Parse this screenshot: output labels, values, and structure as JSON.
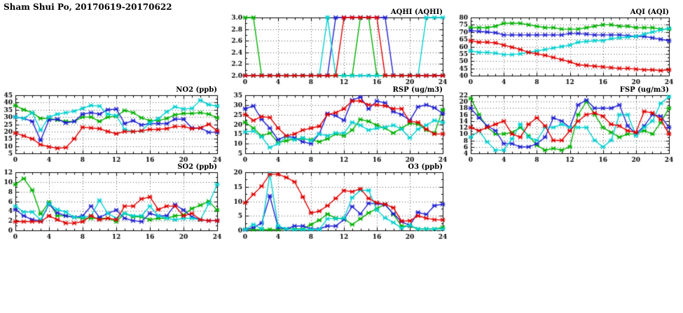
{
  "page_title": "Sham Shui Po, 20170619-20170622",
  "chart_data": [
    {
      "key": "aqhi",
      "type": "line",
      "title": "AQHI (AQHI)",
      "xlabel": "",
      "ylabel": "",
      "xlim": [
        0,
        24
      ],
      "xtick_step": 4,
      "ylim": [
        2.0,
        3.0
      ],
      "ytick_step": 0.2,
      "y_decimals": 1,
      "grid": true,
      "legend": "none",
      "x": [
        0,
        1,
        2,
        3,
        4,
        5,
        6,
        7,
        8,
        9,
        10,
        11,
        12,
        13,
        14,
        15,
        16,
        17,
        18,
        19,
        20,
        21,
        22,
        23,
        24
      ],
      "series": [
        {
          "name": "green",
          "color": "#00b000",
          "values": [
            3,
            3,
            2,
            2,
            2,
            2,
            2,
            2,
            2,
            2,
            2,
            2,
            2,
            2,
            3,
            3,
            2,
            2,
            2,
            2,
            2,
            2,
            2,
            2,
            2
          ]
        },
        {
          "name": "blue",
          "color": "#2020d0",
          "values": [
            2,
            2,
            2,
            2,
            2,
            2,
            2,
            2,
            2,
            2,
            2,
            3,
            3,
            3,
            3,
            3,
            3,
            3,
            2,
            2,
            2,
            2,
            2,
            2,
            2
          ]
        },
        {
          "name": "cyan",
          "color": "#00d0d0",
          "values": [
            2,
            2,
            2,
            2,
            2,
            2,
            2,
            2,
            2,
            2,
            3,
            2,
            2,
            2,
            2,
            2,
            2,
            2,
            2,
            2,
            2,
            2,
            3,
            3,
            3
          ]
        },
        {
          "name": "red",
          "color": "#e00000",
          "values": [
            2,
            2,
            2,
            2,
            2,
            2,
            2,
            2,
            2,
            2,
            2,
            2,
            3,
            3,
            3,
            3,
            3,
            2,
            2,
            2,
            2,
            2,
            2,
            2,
            2
          ]
        }
      ]
    },
    {
      "key": "aqi",
      "type": "line",
      "title": "AQI (AQI)",
      "xlabel": "",
      "ylabel": "",
      "xlim": [
        0,
        24
      ],
      "xtick_step": 4,
      "ylim": [
        40,
        80
      ],
      "ytick_step": 5,
      "y_decimals": 0,
      "grid": true,
      "legend": "none",
      "x": [
        0,
        1,
        2,
        3,
        4,
        5,
        6,
        7,
        8,
        9,
        10,
        11,
        12,
        13,
        14,
        15,
        16,
        17,
        18,
        19,
        20,
        21,
        22,
        23,
        24
      ],
      "series": [
        {
          "name": "green",
          "color": "#00b000",
          "values": [
            73,
            73,
            73,
            74,
            76,
            76,
            76,
            75,
            74,
            73,
            73,
            72,
            72,
            72,
            73,
            74,
            75,
            75,
            74,
            74,
            73,
            73,
            73,
            72,
            72
          ]
        },
        {
          "name": "blue",
          "color": "#2020d0",
          "values": [
            71,
            70.5,
            70,
            69.5,
            68,
            68,
            68,
            68,
            68,
            68,
            68,
            68,
            69,
            69,
            68.5,
            68,
            68,
            68,
            68,
            67.5,
            67,
            67,
            66,
            65,
            64
          ]
        },
        {
          "name": "cyan",
          "color": "#00d0d0",
          "values": [
            57,
            56,
            56,
            55.5,
            54.5,
            54.5,
            55,
            56,
            57,
            58,
            59,
            60,
            61,
            63,
            63.5,
            64,
            64,
            65.5,
            66,
            66.5,
            67,
            68.5,
            70,
            71.5,
            72.5
          ]
        },
        {
          "name": "red",
          "color": "#e00000",
          "values": [
            64,
            63,
            63,
            62.5,
            61,
            59.5,
            58,
            56,
            55,
            54,
            52.5,
            51,
            49.5,
            47.5,
            47,
            46.5,
            46,
            45.5,
            45,
            45,
            44.5,
            44,
            44,
            43.5,
            44
          ]
        }
      ]
    },
    {
      "key": "no2",
      "type": "line",
      "title": "NO2 (ppb)",
      "xlabel": "",
      "ylabel": "",
      "xlim": [
        0,
        24
      ],
      "xtick_step": 4,
      "ylim": [
        5,
        45
      ],
      "ytick_step": 5,
      "y_decimals": 0,
      "grid": true,
      "legend": "none",
      "x": [
        0,
        1,
        2,
        3,
        4,
        5,
        6,
        7,
        8,
        9,
        10,
        11,
        12,
        13,
        14,
        15,
        16,
        17,
        18,
        19,
        20,
        21,
        22,
        23,
        24
      ],
      "series": [
        {
          "name": "green",
          "color": "#00b000",
          "values": [
            38,
            35,
            33,
            29,
            29,
            28,
            27,
            27,
            30,
            30,
            27,
            30,
            30.5,
            34.5,
            33,
            29.5,
            27.5,
            27.5,
            29,
            31.5,
            32.5,
            32.5,
            33,
            32,
            29.5
          ]
        },
        {
          "name": "blue",
          "color": "#2020d0",
          "values": [
            30,
            29,
            27,
            14,
            28,
            28.5,
            26,
            27,
            32,
            33,
            32,
            35,
            35.5,
            25.5,
            27.5,
            24.5,
            25.5,
            25.5,
            25.5,
            28.5,
            28.5,
            22.5,
            22.5,
            19.5,
            19.5
          ]
        },
        {
          "name": "cyan",
          "color": "#00d0d0",
          "values": [
            30,
            29,
            33,
            21,
            30,
            32,
            33,
            34,
            36,
            38,
            37.5,
            32,
            31,
            21.5,
            20,
            20.5,
            26,
            29,
            33.5,
            37,
            35.5,
            36,
            41.5,
            38.5,
            37.5
          ]
        },
        {
          "name": "red",
          "color": "#e00000",
          "values": [
            19,
            17,
            15,
            11,
            9.5,
            8.5,
            9,
            15,
            23,
            22.5,
            22,
            20,
            18.5,
            20,
            20,
            20.5,
            21.5,
            21.5,
            22,
            23.5,
            23.5,
            22,
            22.5,
            25,
            20.5
          ]
        }
      ]
    },
    {
      "key": "rsp",
      "type": "line",
      "title": "RSP (ug/m3)",
      "xlabel": "",
      "ylabel": "",
      "xlim": [
        0,
        24
      ],
      "xtick_step": 4,
      "ylim": [
        5,
        35
      ],
      "ytick_step": 5,
      "y_decimals": 0,
      "grid": true,
      "legend": "none",
      "x": [
        0,
        1,
        2,
        3,
        4,
        5,
        6,
        7,
        8,
        9,
        10,
        11,
        12,
        13,
        14,
        15,
        16,
        17,
        18,
        19,
        20,
        21,
        22,
        23,
        24
      ],
      "series": [
        {
          "name": "green",
          "color": "#00b000",
          "values": [
            21,
            18,
            14,
            15.5,
            10.5,
            11.5,
            12.5,
            12.5,
            12,
            11,
            12.5,
            15,
            14,
            17,
            22.5,
            21.5,
            19.5,
            18,
            15.5,
            18,
            20.5,
            20,
            17,
            15.5,
            27.5
          ]
        },
        {
          "name": "blue",
          "color": "#2020d0",
          "values": [
            28,
            29.5,
            22.5,
            18,
            12,
            14,
            13,
            11,
            10,
            15,
            25.5,
            24.5,
            22,
            32.5,
            34,
            28,
            32,
            31,
            26.5,
            25,
            22,
            29,
            30,
            28.5,
            25.5
          ]
        },
        {
          "name": "cyan",
          "color": "#00d0d0",
          "values": [
            16,
            16.5,
            13.5,
            8,
            10,
            13.5,
            12,
            13,
            11.5,
            15,
            14,
            15.5,
            15.5,
            21,
            19.5,
            17,
            18,
            18.5,
            19.5,
            17.5,
            13,
            17.5,
            19.5,
            22,
            21
          ]
        },
        {
          "name": "red",
          "color": "#e00000",
          "values": [
            25,
            22,
            24,
            23.5,
            18,
            14,
            15,
            17,
            18,
            19,
            25,
            26,
            28,
            32,
            32,
            30,
            30,
            29.5,
            28,
            28,
            21.5,
            21,
            17.5,
            15,
            15
          ]
        }
      ]
    },
    {
      "key": "fsp",
      "type": "line",
      "title": "FSP (ug/m3)",
      "xlabel": "",
      "ylabel": "",
      "xlim": [
        0,
        24
      ],
      "xtick_step": 4,
      "ylim": [
        4,
        22
      ],
      "ytick_step": 2,
      "y_decimals": 0,
      "grid": true,
      "legend": "none",
      "x": [
        0,
        1,
        2,
        3,
        4,
        5,
        6,
        7,
        8,
        9,
        10,
        11,
        12,
        13,
        14,
        15,
        16,
        17,
        18,
        19,
        20,
        21,
        22,
        23,
        24
      ],
      "series": [
        {
          "name": "green",
          "color": "#00b000",
          "values": [
            21,
            16,
            12,
            10,
            10,
            10.5,
            12,
            9.5,
            6.5,
            5,
            5.5,
            5,
            6,
            16,
            20,
            16,
            12,
            10.5,
            9,
            10,
            10,
            11,
            10,
            13.5,
            18
          ]
        },
        {
          "name": "blue",
          "color": "#2020d0",
          "values": [
            18,
            15,
            12.5,
            11,
            7,
            7,
            6,
            6,
            7,
            9,
            15,
            14,
            12,
            19,
            20.5,
            18,
            18,
            18,
            19,
            12.5,
            10,
            12.5,
            16,
            15.5,
            12
          ]
        },
        {
          "name": "cyan",
          "color": "#00d0d0",
          "values": [
            9,
            11,
            7.5,
            5,
            5,
            8.5,
            13,
            9,
            8,
            12,
            12,
            13,
            12,
            12,
            12,
            8,
            6,
            8,
            16,
            16,
            9.5,
            12,
            14,
            19.5,
            21.5
          ]
        },
        {
          "name": "red",
          "color": "#e00000",
          "values": [
            12,
            11,
            12,
            13,
            14,
            10,
            9,
            13,
            15,
            12.5,
            8,
            8,
            11,
            14,
            16,
            16.5,
            15.5,
            13,
            12.5,
            11,
            10.5,
            17,
            16.5,
            14.5,
            10
          ]
        }
      ]
    },
    {
      "key": "so2",
      "type": "line",
      "title": "SO2 (ppb)",
      "xlabel": "",
      "ylabel": "",
      "xlim": [
        0,
        24
      ],
      "xtick_step": 4,
      "ylim": [
        0,
        12
      ],
      "ytick_step": 2,
      "y_decimals": 0,
      "grid": true,
      "legend": "none",
      "x": [
        0,
        1,
        2,
        3,
        4,
        5,
        6,
        7,
        8,
        9,
        10,
        11,
        12,
        13,
        14,
        15,
        16,
        17,
        18,
        19,
        20,
        21,
        22,
        23,
        24
      ],
      "series": [
        {
          "name": "green",
          "color": "#00b000",
          "values": [
            9.5,
            10.7,
            8.3,
            3.4,
            5.8,
            3,
            3,
            2.7,
            2.5,
            2.5,
            2.5,
            2.5,
            1.8,
            3.5,
            2.8,
            2.8,
            2.2,
            2.5,
            2.5,
            3,
            3.2,
            4.5,
            5.2,
            6,
            4.2
          ]
        },
        {
          "name": "blue",
          "color": "#2020d0",
          "values": [
            4.3,
            3,
            2.2,
            2,
            5.4,
            3.6,
            3,
            2.7,
            3,
            5,
            2.7,
            3.5,
            4.2,
            2.5,
            2,
            1.8,
            3.5,
            3,
            3,
            5.3,
            4.2,
            2.8,
            2.2,
            2,
            2
          ]
        },
        {
          "name": "cyan",
          "color": "#00d0d0",
          "values": [
            5,
            3.8,
            3.8,
            2.2,
            5.5,
            4.3,
            3.8,
            2.7,
            2.7,
            3,
            6.2,
            3.5,
            2.5,
            3.5,
            3,
            3,
            5,
            3,
            2.5,
            2.2,
            2.5,
            2.5,
            2.2,
            5.5,
            9.5
          ]
        },
        {
          "name": "red",
          "color": "#e00000",
          "values": [
            1.8,
            1.8,
            1.8,
            1.8,
            3,
            2.2,
            1.5,
            1.5,
            1.8,
            3,
            2.2,
            2.5,
            2.2,
            5,
            5,
            6.5,
            6.9,
            4.3,
            5,
            5,
            3,
            3.5,
            2.2,
            2,
            2
          ]
        }
      ]
    },
    {
      "key": "o3",
      "type": "line",
      "title": "O3 (ppb)",
      "xlabel": "",
      "ylabel": "",
      "xlim": [
        0,
        24
      ],
      "xtick_step": 4,
      "ylim": [
        0,
        20
      ],
      "ytick_step": 5,
      "y_decimals": 0,
      "grid": true,
      "legend": "none",
      "x": [
        0,
        1,
        2,
        3,
        4,
        5,
        6,
        7,
        8,
        9,
        10,
        11,
        12,
        13,
        14,
        15,
        16,
        17,
        18,
        19,
        20,
        21,
        22,
        23,
        24
      ],
      "series": [
        {
          "name": "green",
          "color": "#00b000",
          "values": [
            0.3,
            0.3,
            0.3,
            0.3,
            0.3,
            0.5,
            0.5,
            0.5,
            2,
            3.5,
            5.6,
            4.2,
            4,
            2,
            4,
            6,
            7.5,
            9,
            5.5,
            1.5,
            1.5,
            0.5,
            0.5,
            0.5,
            1
          ]
        },
        {
          "name": "blue",
          "color": "#2020d0",
          "values": [
            0.2,
            1,
            2.5,
            11.8,
            1,
            0.5,
            1.5,
            1.5,
            0.5,
            0.5,
            1.5,
            1.5,
            3.7,
            8.2,
            5.7,
            9.3,
            9.2,
            8.8,
            5.7,
            3,
            1.7,
            6.2,
            5.5,
            8.5,
            9
          ]
        },
        {
          "name": "cyan",
          "color": "#00d0d0",
          "values": [
            0.3,
            2,
            0.5,
            19.5,
            1.5,
            0.5,
            0.3,
            0.3,
            0.3,
            0.3,
            4,
            4,
            4.2,
            11.3,
            13.8,
            13.8,
            7,
            4.3,
            2.7,
            0.8,
            1.8,
            0.5,
            0.5,
            0.5,
            0.5
          ]
        },
        {
          "name": "red",
          "color": "#e00000",
          "values": [
            9.5,
            12.4,
            15.2,
            19.3,
            19.3,
            18.2,
            16.7,
            11.5,
            6,
            6.6,
            8.5,
            11,
            13.7,
            13.3,
            14.3,
            11,
            9.5,
            9,
            7.8,
            3.2,
            3.3,
            5,
            4.2,
            3.7,
            3.6
          ]
        }
      ]
    }
  ]
}
